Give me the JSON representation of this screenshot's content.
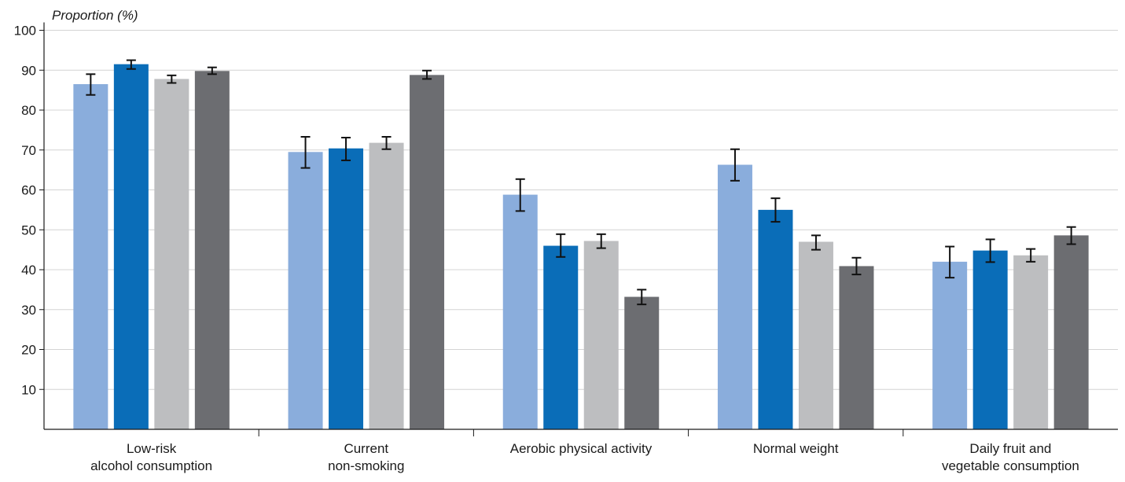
{
  "chart_data": {
    "type": "bar",
    "ylabel": "Proportion (%)",
    "ylim": [
      0,
      100
    ],
    "yticks": [
      10,
      20,
      30,
      40,
      50,
      60,
      70,
      80,
      90,
      100
    ],
    "grid": true,
    "legend": "none",
    "categories": [
      [
        "Low-risk",
        "alcohol consumption"
      ],
      [
        "Current",
        "non-smoking"
      ],
      [
        "Aerobic physical activity"
      ],
      [
        "Normal weight"
      ],
      [
        "Daily fruit and",
        "vegetable consumption"
      ]
    ],
    "series": [
      {
        "color": "#8aaddc",
        "values": [
          86.5,
          69.5,
          58.8,
          66.3,
          42.0
        ],
        "error_low": [
          83.8,
          65.5,
          54.7,
          62.3,
          38.0
        ],
        "error_high": [
          89.0,
          73.3,
          62.7,
          70.2,
          45.8
        ]
      },
      {
        "color": "#0a6db8",
        "values": [
          91.5,
          70.4,
          46.0,
          55.0,
          44.8
        ],
        "error_low": [
          90.3,
          67.4,
          43.2,
          52.0,
          41.9
        ],
        "error_high": [
          92.5,
          73.1,
          48.9,
          57.9,
          47.6
        ]
      },
      {
        "color": "#bdbec0",
        "values": [
          87.8,
          71.8,
          47.2,
          47.0,
          43.6
        ],
        "error_low": [
          86.8,
          70.2,
          45.4,
          45.0,
          42.0
        ],
        "error_high": [
          88.7,
          73.3,
          48.9,
          48.6,
          45.2
        ]
      },
      {
        "color": "#6c6d71",
        "values": [
          89.8,
          88.8,
          33.2,
          40.9,
          48.6
        ],
        "error_low": [
          89.0,
          87.8,
          31.3,
          38.8,
          46.4
        ],
        "error_high": [
          90.7,
          89.9,
          35.0,
          43.0,
          50.7
        ]
      }
    ]
  }
}
